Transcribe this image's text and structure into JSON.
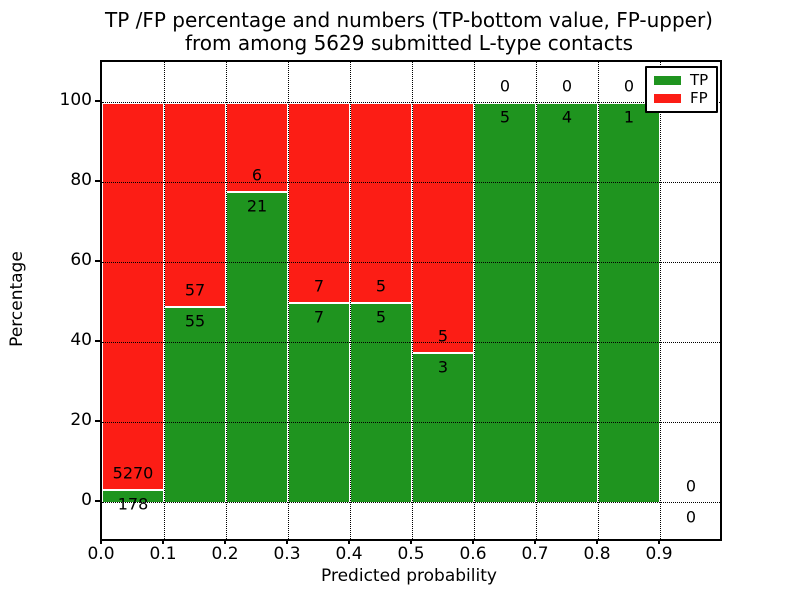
{
  "title": {
    "line1": "TP /FP percentage and numbers (TP-bottom value, FP-upper)",
    "line2": "from among 5629 submitted L-type contacts"
  },
  "axes": {
    "xlabel": "Predicted probability",
    "ylabel": "Percentage",
    "xtick_labels": [
      "0.0",
      "0.1",
      "0.2",
      "0.3",
      "0.4",
      "0.5",
      "0.6",
      "0.7",
      "0.8",
      "0.9"
    ],
    "ytick_labels": [
      "0",
      "20",
      "40",
      "60",
      "80",
      "100"
    ],
    "ytick_values": [
      0,
      20,
      40,
      60,
      80,
      100
    ]
  },
  "legend": {
    "items": [
      {
        "label": "TP",
        "color_key": "tp"
      },
      {
        "label": "FP",
        "color_key": "fp"
      }
    ]
  },
  "colors": {
    "tp": "#1f941f",
    "fp": "#fc1d15",
    "grid": "#000000",
    "background": "#ffffff"
  },
  "chart_data": {
    "type": "bar",
    "stacked": true,
    "title": "TP /FP percentage and numbers (TP-bottom value, FP-upper) from among 5629 submitted L-type contacts",
    "xlabel": "Predicted probability",
    "ylabel": "Percentage",
    "xlim": [
      0.0,
      1.0
    ],
    "ylim": [
      -9,
      110
    ],
    "grid": "dotted black, horizontal at 0-100 step 20, vertical at 0.1-0.9 step 0.1",
    "legend_position": "upper-right",
    "total_contacts": 5629,
    "bin_width": 0.1,
    "series_note": "TP percentage stacked below FP percentage; labels show raw counts (TP bottom, FP upper)",
    "bins": [
      {
        "x_start": 0.0,
        "x_end": 0.1,
        "tp_count": 178,
        "fp_count": 5270,
        "tp_pct": 3.3,
        "fp_pct": 96.7
      },
      {
        "x_start": 0.1,
        "x_end": 0.2,
        "tp_count": 55,
        "fp_count": 57,
        "tp_pct": 49.1,
        "fp_pct": 50.9
      },
      {
        "x_start": 0.2,
        "x_end": 0.3,
        "tp_count": 21,
        "fp_count": 6,
        "tp_pct": 77.8,
        "fp_pct": 22.2
      },
      {
        "x_start": 0.3,
        "x_end": 0.4,
        "tp_count": 7,
        "fp_count": 7,
        "tp_pct": 50.0,
        "fp_pct": 50.0
      },
      {
        "x_start": 0.4,
        "x_end": 0.5,
        "tp_count": 5,
        "fp_count": 5,
        "tp_pct": 50.0,
        "fp_pct": 50.0
      },
      {
        "x_start": 0.5,
        "x_end": 0.6,
        "tp_count": 3,
        "fp_count": 5,
        "tp_pct": 37.5,
        "fp_pct": 62.5
      },
      {
        "x_start": 0.6,
        "x_end": 0.7,
        "tp_count": 5,
        "fp_count": 0,
        "tp_pct": 100.0,
        "fp_pct": 0.0
      },
      {
        "x_start": 0.7,
        "x_end": 0.8,
        "tp_count": 4,
        "fp_count": 0,
        "tp_pct": 100.0,
        "fp_pct": 0.0
      },
      {
        "x_start": 0.8,
        "x_end": 0.9,
        "tp_count": 1,
        "fp_count": 0,
        "tp_pct": 100.0,
        "fp_pct": 0.0
      },
      {
        "x_start": 0.9,
        "x_end": 1.0,
        "tp_count": 0,
        "fp_count": 0,
        "tp_pct": 0.0,
        "fp_pct": 0.0,
        "empty": true
      }
    ]
  }
}
